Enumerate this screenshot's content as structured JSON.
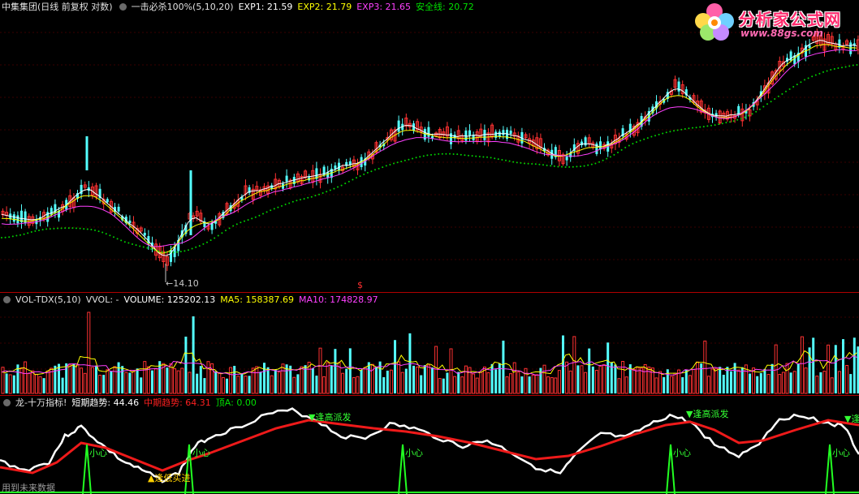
{
  "price_panel": {
    "title": "中集集团(日线 前复权 对数)",
    "indicator_name": "一击必杀100%(5,10,20)",
    "exp1": "EXP1: 21.59",
    "exp2": "EXP2: 21.79",
    "exp3": "EXP3: 21.65",
    "safe_line": "安全线: 20.72",
    "low_label": "←14.10",
    "marker": "$",
    "colors": {
      "up": "#ff3232",
      "down": "#54ffff",
      "exp1": "#ffffff",
      "exp2": "#ffff00",
      "exp3": "#ff40ff",
      "safe": "#00d000"
    }
  },
  "volume_panel": {
    "title": "VOL-TDX(5,10)",
    "vvol": "VVOL: -",
    "volume": "VOLUME: 125202.13",
    "ma5": "MA5: 158387.69",
    "ma10": "MA10: 174828.97"
  },
  "indicator_panel": {
    "title": "龙-十万指标!",
    "short_trend": "短期趋势: 44.46",
    "mid_trend": "中期趋势: 64.31",
    "top_a": "顶A: 0.00",
    "annotations": {
      "sell_top": "▼逢高派发",
      "buy_low": "▲逢低买进",
      "careful": "小心"
    }
  },
  "logo": {
    "name": "分析家公式网",
    "url": "www.88gs.com"
  },
  "footer": "用到未来数据"
}
